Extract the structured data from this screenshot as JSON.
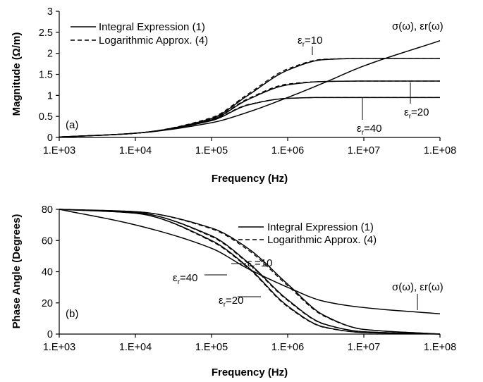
{
  "chart_data": [
    {
      "type": "line",
      "panel_label": "(a)",
      "xlabel": "Frequency (Hz)",
      "ylabel": "Magnitude (Ω/m)",
      "x_scale": "log",
      "xlim": [
        1000,
        100000000
      ],
      "ylim": [
        0,
        3
      ],
      "x_ticks": [
        "1.E+03",
        "1.E+04",
        "1.E+05",
        "1.E+06",
        "1.E+07",
        "1.E+08"
      ],
      "y_ticks": [
        "0",
        "0.5",
        "1",
        "1.5",
        "2",
        "2.5",
        "3"
      ],
      "legend": [
        {
          "label": "Integral Expression (1)",
          "style": "solid"
        },
        {
          "label": "Logarithmic Approx. (4)",
          "style": "dashed"
        }
      ],
      "legend_position": "top-left",
      "x": [
        1000,
        10000,
        100000,
        300000,
        1000000,
        3000000,
        10000000,
        100000000
      ],
      "series": [
        {
          "name": "εr=10",
          "style": "solid",
          "values": [
            0.01,
            0.1,
            0.45,
            1.0,
            1.6,
            1.85,
            1.88,
            1.88
          ]
        },
        {
          "name": "εr=10",
          "style": "dashed",
          "values": [
            0.01,
            0.1,
            0.47,
            1.03,
            1.63,
            1.86,
            1.88,
            1.88
          ]
        },
        {
          "name": "εr=20",
          "style": "solid",
          "values": [
            0.01,
            0.1,
            0.42,
            0.9,
            1.25,
            1.33,
            1.34,
            1.34
          ]
        },
        {
          "name": "εr=20",
          "style": "dashed",
          "values": [
            0.01,
            0.1,
            0.43,
            0.92,
            1.27,
            1.33,
            1.34,
            1.34
          ]
        },
        {
          "name": "εr=40",
          "style": "solid",
          "values": [
            0.01,
            0.1,
            0.4,
            0.77,
            0.93,
            0.95,
            0.95,
            0.95
          ]
        },
        {
          "name": "εr=40",
          "style": "dashed",
          "values": [
            0.01,
            0.1,
            0.41,
            0.78,
            0.93,
            0.95,
            0.95,
            0.95
          ]
        },
        {
          "name": "σ(ω), εr(ω)",
          "style": "solid",
          "values": [
            0.01,
            0.1,
            0.35,
            0.6,
            0.95,
            1.3,
            1.7,
            2.3
          ]
        }
      ],
      "annotations": [
        "εr=10",
        "εr=20",
        "εr=40",
        "σ(ω), εr(ω)"
      ]
    },
    {
      "type": "line",
      "panel_label": "(b)",
      "xlabel": "Frequency (Hz)",
      "ylabel": "Phase Angle (Degrees)",
      "x_scale": "log",
      "xlim": [
        1000,
        100000000
      ],
      "ylim": [
        0,
        80
      ],
      "x_ticks": [
        "1.E+03",
        "1.E+04",
        "1.E+05",
        "1.E+06",
        "1.E+07",
        "1.E+08"
      ],
      "y_ticks": [
        "0",
        "20",
        "40",
        "60",
        "80"
      ],
      "legend": [
        {
          "label": "Integral Expression (1)",
          "style": "solid"
        },
        {
          "label": "Logarithmic Approx. (4)",
          "style": "dashed"
        }
      ],
      "legend_position": "top-right",
      "x": [
        1000,
        10000,
        100000,
        300000,
        1000000,
        3000000,
        10000000,
        100000000
      ],
      "series": [
        {
          "name": "εr=10",
          "style": "solid",
          "values": [
            80,
            78.5,
            68,
            55,
            32,
            12,
            3,
            0
          ]
        },
        {
          "name": "εr=10",
          "style": "dashed",
          "values": [
            80,
            78.5,
            67.5,
            54,
            31,
            11.5,
            3,
            0
          ]
        },
        {
          "name": "εr=20",
          "style": "solid",
          "values": [
            80,
            78,
            63,
            46,
            22,
            6.5,
            1.5,
            0
          ]
        },
        {
          "name": "εr=20",
          "style": "dashed",
          "values": [
            80,
            78,
            62.5,
            45.5,
            21.5,
            6.3,
            1.5,
            0
          ]
        },
        {
          "name": "εr=40",
          "style": "solid",
          "values": [
            80,
            77.5,
            60,
            43,
            18,
            4.5,
            1,
            0
          ]
        },
        {
          "name": "εr=40",
          "style": "dashed",
          "values": [
            80,
            77.5,
            59.5,
            42.5,
            17.5,
            4.3,
            1,
            0
          ]
        },
        {
          "name": "σ(ω), εr(ω)",
          "style": "solid",
          "values": [
            80,
            70,
            55,
            42,
            30,
            21,
            17,
            13
          ]
        }
      ],
      "annotations": [
        "εr=10",
        "εr=40",
        "εr=20",
        "σ(ω), εr(ω)"
      ]
    }
  ]
}
